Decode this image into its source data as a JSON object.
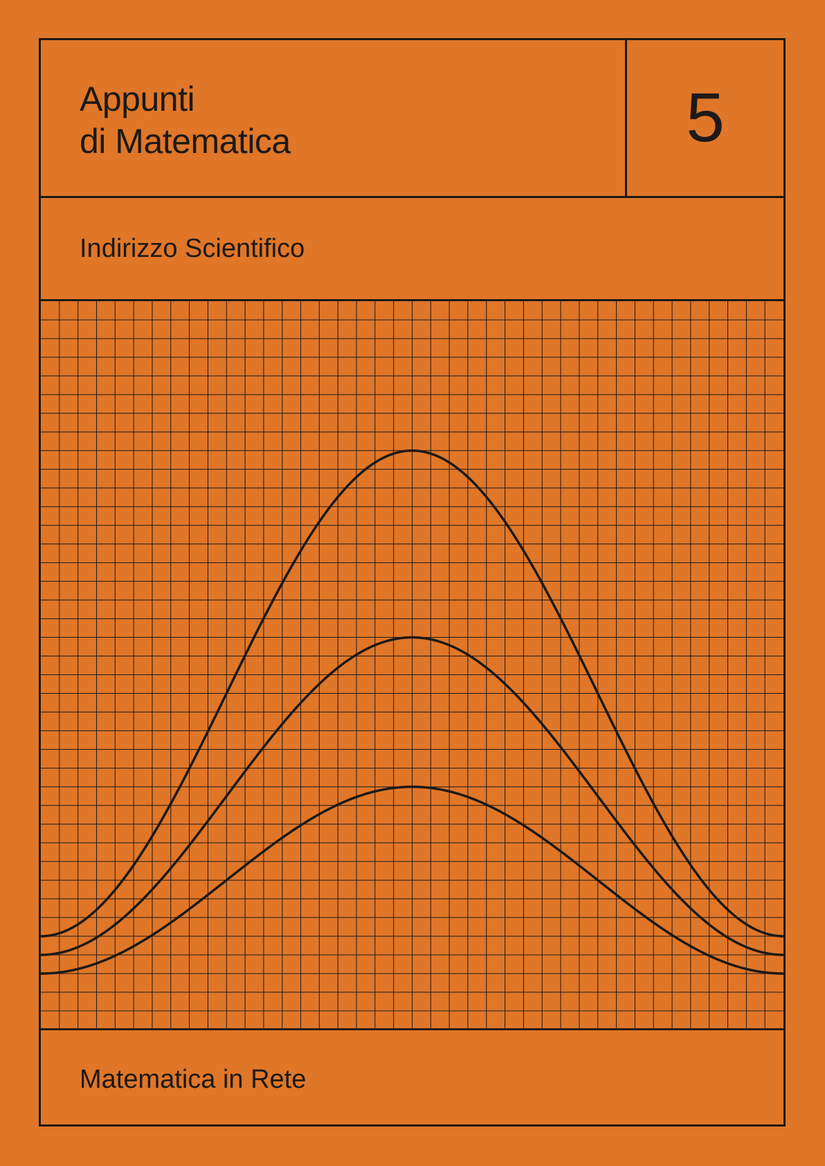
{
  "cover": {
    "background_color": "#E07628",
    "ink_color": "#1C1A18",
    "title_lines": [
      "Appunti",
      "di Matematica"
    ],
    "volume": "5",
    "subtitle": "Indirizzo Scientifico",
    "publisher": "Matematica in Rete"
  },
  "illustration": {
    "type": "bell-curves-on-graph-paper",
    "grid_columns": 40,
    "grid_rows": 39,
    "curves": [
      {
        "peak_row": 8,
        "baseline_row": 34
      },
      {
        "peak_row": 18,
        "baseline_row": 35
      },
      {
        "peak_row": 26,
        "baseline_row": 36
      }
    ]
  }
}
